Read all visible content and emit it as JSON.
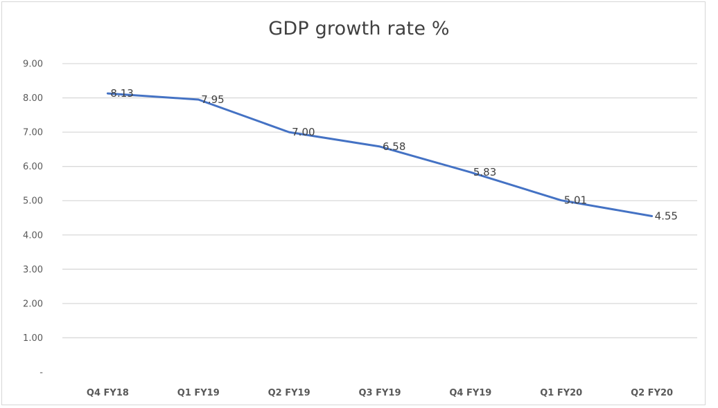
{
  "chart_data": {
    "type": "line",
    "title": "GDP growth rate %",
    "xlabel": "",
    "ylabel": "",
    "categories": [
      "Q4 FY18",
      "Q1 FY19",
      "Q2 FY19",
      "Q3 FY19",
      "Q4 FY19",
      "Q1 FY20",
      "Q2 FY20"
    ],
    "series": [
      {
        "values": [
          8.13,
          7.95,
          7.0,
          6.58,
          5.83,
          5.01,
          4.55
        ],
        "data_labels": [
          "8.13",
          "7.95",
          "7.00",
          "6.58",
          "5.83",
          "5.01",
          "4.55"
        ],
        "color": "#4472c4"
      }
    ],
    "ylim": [
      0,
      9
    ],
    "yticks": [
      0,
      1,
      2,
      3,
      4,
      5,
      6,
      7,
      8,
      9
    ],
    "ytick_labels": [
      "-",
      "1.00",
      "2.00",
      "3.00",
      "4.00",
      "5.00",
      "6.00",
      "7.00",
      "8.00",
      "9.00"
    ],
    "grid": true,
    "legend": "none"
  }
}
